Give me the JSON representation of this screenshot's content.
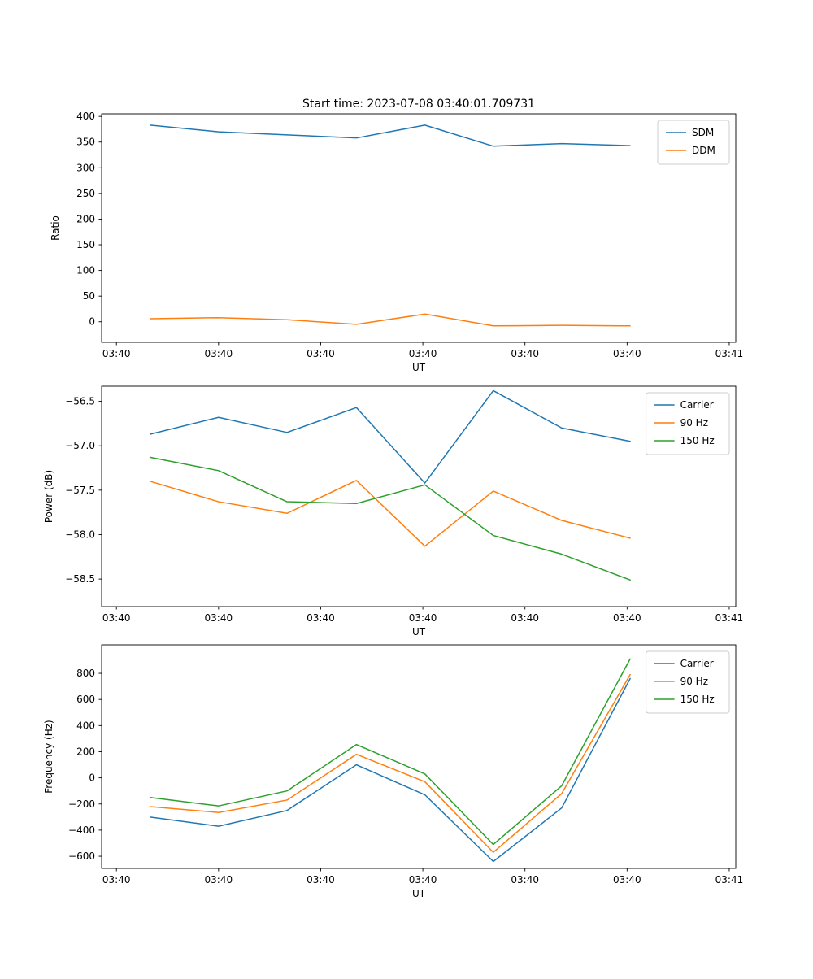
{
  "figure": {
    "background": "#ffffff"
  },
  "colors": {
    "blue": "#1f77b4",
    "orange": "#ff7f0e",
    "green": "#2ca02c"
  },
  "chart_data": [
    {
      "type": "line",
      "title": "Start time: 2023-07-08 03:40:01.709731",
      "xlabel": "UT",
      "ylabel": "Ratio",
      "xlim": [
        -1.45,
        60.64
      ],
      "ylim": [
        -40,
        405
      ],
      "grid": false,
      "legend_position": "upper right",
      "x": [
        3.3,
        10.0,
        16.7,
        23.5,
        30.2,
        36.9,
        43.6,
        50.3
      ],
      "xticks": [
        0,
        10,
        20,
        30,
        40,
        50,
        60
      ],
      "xtick_labels": [
        "03:40",
        "03:40",
        "03:40",
        "03:40",
        "03:40",
        "03:40",
        "03:41"
      ],
      "yticks": [
        0,
        50,
        100,
        150,
        200,
        250,
        300,
        350,
        400
      ],
      "ytick_labels": [
        "0",
        "50",
        "100",
        "150",
        "200",
        "250",
        "300",
        "350",
        "400"
      ],
      "series": [
        {
          "name": "SDM",
          "color": "#1f77b4",
          "values": [
            383,
            370,
            364,
            358,
            383,
            342,
            347,
            343
          ]
        },
        {
          "name": "DDM",
          "color": "#ff7f0e",
          "values": [
            6,
            8,
            4,
            -5,
            15,
            -8,
            -7,
            -8
          ]
        }
      ]
    },
    {
      "type": "line",
      "title": "",
      "xlabel": "UT",
      "ylabel": "Power (dB)",
      "xlim": [
        -1.45,
        60.64
      ],
      "ylim": [
        -58.81,
        -56.33
      ],
      "grid": false,
      "legend_position": "upper right",
      "x": [
        3.3,
        10.0,
        16.7,
        23.5,
        30.2,
        36.9,
        43.6,
        50.3
      ],
      "xticks": [
        0,
        10,
        20,
        30,
        40,
        50,
        60
      ],
      "xtick_labels": [
        "03:40",
        "03:40",
        "03:40",
        "03:40",
        "03:40",
        "03:40",
        "03:41"
      ],
      "yticks": [
        -56.5,
        -57.0,
        -57.5,
        -58.0,
        -58.5
      ],
      "ytick_labels": [
        "−56.5",
        "−57.0",
        "−57.5",
        "−58.0",
        "−58.5"
      ],
      "series": [
        {
          "name": "Carrier",
          "color": "#1f77b4",
          "values": [
            -56.87,
            -56.68,
            -56.85,
            -56.57,
            -57.42,
            -56.38,
            -56.8,
            -56.95
          ]
        },
        {
          "name": "90 Hz",
          "color": "#ff7f0e",
          "values": [
            -57.4,
            -57.63,
            -57.76,
            -57.39,
            -58.13,
            -57.51,
            -57.84,
            -58.04
          ]
        },
        {
          "name": "150 Hz",
          "color": "#2ca02c",
          "values": [
            -57.13,
            -57.28,
            -57.63,
            -57.65,
            -57.44,
            -58.01,
            -58.22,
            -58.51
          ]
        }
      ]
    },
    {
      "type": "line",
      "title": "",
      "xlabel": "UT",
      "ylabel": "Frequency (Hz)",
      "xlim": [
        -1.45,
        60.64
      ],
      "ylim": [
        -693,
        1018
      ],
      "grid": false,
      "legend_position": "upper right",
      "x": [
        3.3,
        10.0,
        16.7,
        23.5,
        30.2,
        36.9,
        43.6,
        50.3
      ],
      "xticks": [
        0,
        10,
        20,
        30,
        40,
        50,
        60
      ],
      "xtick_labels": [
        "03:40",
        "03:40",
        "03:40",
        "03:40",
        "03:40",
        "03:40",
        "03:41"
      ],
      "yticks": [
        800,
        600,
        400,
        200,
        0,
        -200,
        -400,
        -600
      ],
      "ytick_labels": [
        "800",
        "600",
        "400",
        "200",
        "0",
        "−200",
        "−400",
        "−600"
      ],
      "series": [
        {
          "name": "Carrier",
          "color": "#1f77b4",
          "values": [
            -300,
            -370,
            -250,
            100,
            -130,
            -640,
            -230,
            760
          ]
        },
        {
          "name": "90 Hz",
          "color": "#ff7f0e",
          "values": [
            -220,
            -265,
            -170,
            180,
            -30,
            -570,
            -120,
            790
          ]
        },
        {
          "name": "150 Hz",
          "color": "#2ca02c",
          "values": [
            -150,
            -215,
            -100,
            255,
            30,
            -510,
            -60,
            910
          ]
        }
      ]
    }
  ]
}
